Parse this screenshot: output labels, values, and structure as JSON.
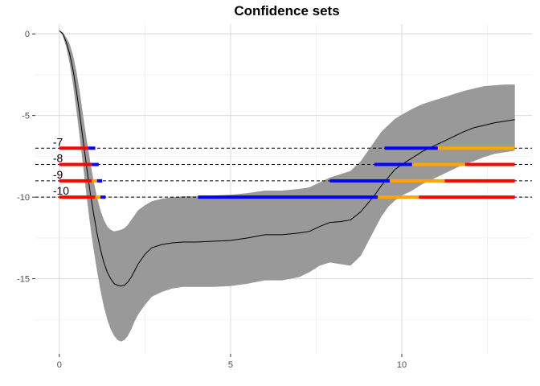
{
  "chart_data": {
    "type": "line",
    "title": "Confidence sets",
    "xlabel": "",
    "ylabel": "",
    "xlim": [
      -0.7,
      13.8
    ],
    "ylim": [
      -19.6,
      0.6
    ],
    "xticks": [
      0,
      5,
      10
    ],
    "yticks": [
      0,
      -5,
      -10,
      -15
    ],
    "grid": true,
    "colors": {
      "line": "#000000",
      "band": "#999999",
      "grid_major": "#d9d9d9",
      "grid_minor": "#ececec",
      "red": "#ff0000",
      "orange": "#ffa500",
      "blue": "#0000ff",
      "dashed": "#000000"
    },
    "series": [
      {
        "x": [
          0,
          0.1,
          0.2,
          0.3,
          0.4,
          0.5,
          0.6,
          0.7,
          0.8,
          0.9,
          1.0,
          1.1,
          1.2,
          1.3,
          1.4,
          1.5,
          1.6,
          1.7,
          1.8,
          1.9,
          2.0,
          2.1,
          2.2,
          2.3,
          2.5,
          2.7,
          3.0,
          3.3,
          3.6,
          4.0,
          4.5,
          5.0,
          5.5,
          6.0,
          6.5,
          7.0,
          7.3,
          7.6,
          7.9,
          8.2,
          8.5,
          8.8,
          9.0,
          9.2,
          9.4,
          9.6,
          9.8,
          10.0,
          10.3,
          10.6,
          10.9,
          11.2,
          11.5,
          11.8,
          12.1,
          12.4,
          12.7,
          13.0,
          13.3
        ],
        "y": [
          0.2,
          0.0,
          -0.5,
          -1.2,
          -2.2,
          -3.5,
          -5.0,
          -6.6,
          -8.2,
          -9.7,
          -11.0,
          -12.2,
          -13.2,
          -14.0,
          -14.6,
          -15.0,
          -15.3,
          -15.4,
          -15.45,
          -15.4,
          -15.2,
          -14.9,
          -14.5,
          -14.1,
          -13.5,
          -13.1,
          -12.9,
          -12.8,
          -12.75,
          -12.75,
          -12.7,
          -12.65,
          -12.5,
          -12.3,
          -12.3,
          -12.2,
          -12.1,
          -11.8,
          -11.55,
          -11.5,
          -11.4,
          -10.9,
          -10.4,
          -9.9,
          -9.3,
          -8.8,
          -8.3,
          -8.0,
          -7.6,
          -7.2,
          -6.9,
          -6.6,
          -6.3,
          -6.0,
          -5.75,
          -5.6,
          -5.45,
          -5.35,
          -5.25
        ],
        "lower": [
          0.2,
          -0.1,
          -0.8,
          -1.8,
          -3.1,
          -4.7,
          -6.4,
          -8.2,
          -10.0,
          -11.7,
          -13.2,
          -14.5,
          -15.7,
          -16.7,
          -17.5,
          -18.1,
          -18.5,
          -18.75,
          -18.85,
          -18.75,
          -18.5,
          -18.1,
          -17.6,
          -17.2,
          -16.6,
          -16.1,
          -15.8,
          -15.6,
          -15.5,
          -15.5,
          -15.5,
          -15.45,
          -15.3,
          -15.1,
          -15.1,
          -14.9,
          -14.6,
          -14.2,
          -14.0,
          -14.1,
          -14.2,
          -13.6,
          -12.8,
          -12.0,
          -11.2,
          -10.6,
          -10.2,
          -9.9,
          -9.6,
          -9.2,
          -8.9,
          -8.6,
          -8.3,
          -8.0,
          -7.8,
          -7.55,
          -7.35,
          -7.25,
          -7.15
        ],
        "upper": [
          0.2,
          0.1,
          -0.2,
          -0.6,
          -1.3,
          -2.3,
          -3.6,
          -5.1,
          -6.5,
          -7.8,
          -9.0,
          -10.0,
          -10.8,
          -11.4,
          -11.8,
          -12.0,
          -12.1,
          -12.05,
          -12.0,
          -11.9,
          -11.7,
          -11.4,
          -11.1,
          -10.8,
          -10.5,
          -10.25,
          -10.1,
          -10.0,
          -9.95,
          -9.95,
          -9.9,
          -9.85,
          -9.75,
          -9.6,
          -9.6,
          -9.5,
          -9.4,
          -9.1,
          -8.8,
          -8.6,
          -8.4,
          -7.8,
          -7.2,
          -6.6,
          -6.0,
          -5.6,
          -5.2,
          -4.95,
          -4.6,
          -4.3,
          -4.1,
          -3.9,
          -3.7,
          -3.5,
          -3.35,
          -3.2,
          -3.15,
          -3.1,
          -3.1
        ]
      }
    ],
    "horizontal_lines": [
      {
        "y": -7,
        "label": "-7",
        "segments": [
          {
            "x0": 0.0,
            "x1": 0.85,
            "color": "red"
          },
          {
            "x0": 0.85,
            "x1": 1.05,
            "color": "blue"
          },
          {
            "x0": 9.5,
            "x1": 11.05,
            "color": "blue"
          },
          {
            "x0": 11.05,
            "x1": 13.3,
            "color": "orange"
          }
        ]
      },
      {
        "y": -8,
        "label": "-8",
        "segments": [
          {
            "x0": 0.0,
            "x1": 0.95,
            "color": "red"
          },
          {
            "x0": 0.95,
            "x1": 1.15,
            "color": "blue"
          },
          {
            "x0": 9.2,
            "x1": 10.3,
            "color": "blue"
          },
          {
            "x0": 10.3,
            "x1": 11.85,
            "color": "orange"
          },
          {
            "x0": 11.85,
            "x1": 13.3,
            "color": "red"
          }
        ]
      },
      {
        "y": -9,
        "label": "-9",
        "segments": [
          {
            "x0": 0.0,
            "x1": 0.95,
            "color": "red"
          },
          {
            "x0": 0.95,
            "x1": 1.1,
            "color": "orange"
          },
          {
            "x0": 1.1,
            "x1": 1.25,
            "color": "blue"
          },
          {
            "x0": 7.9,
            "x1": 9.65,
            "color": "blue"
          },
          {
            "x0": 9.65,
            "x1": 11.25,
            "color": "orange"
          },
          {
            "x0": 11.25,
            "x1": 13.3,
            "color": "red"
          }
        ]
      },
      {
        "y": -10,
        "label": "-10",
        "segments": [
          {
            "x0": 0.0,
            "x1": 1.05,
            "color": "red"
          },
          {
            "x0": 1.05,
            "x1": 1.2,
            "color": "orange"
          },
          {
            "x0": 1.2,
            "x1": 1.35,
            "color": "blue"
          },
          {
            "x0": 4.05,
            "x1": 9.3,
            "color": "blue"
          },
          {
            "x0": 9.3,
            "x1": 10.5,
            "color": "orange"
          },
          {
            "x0": 10.5,
            "x1": 13.3,
            "color": "red"
          }
        ]
      }
    ]
  }
}
